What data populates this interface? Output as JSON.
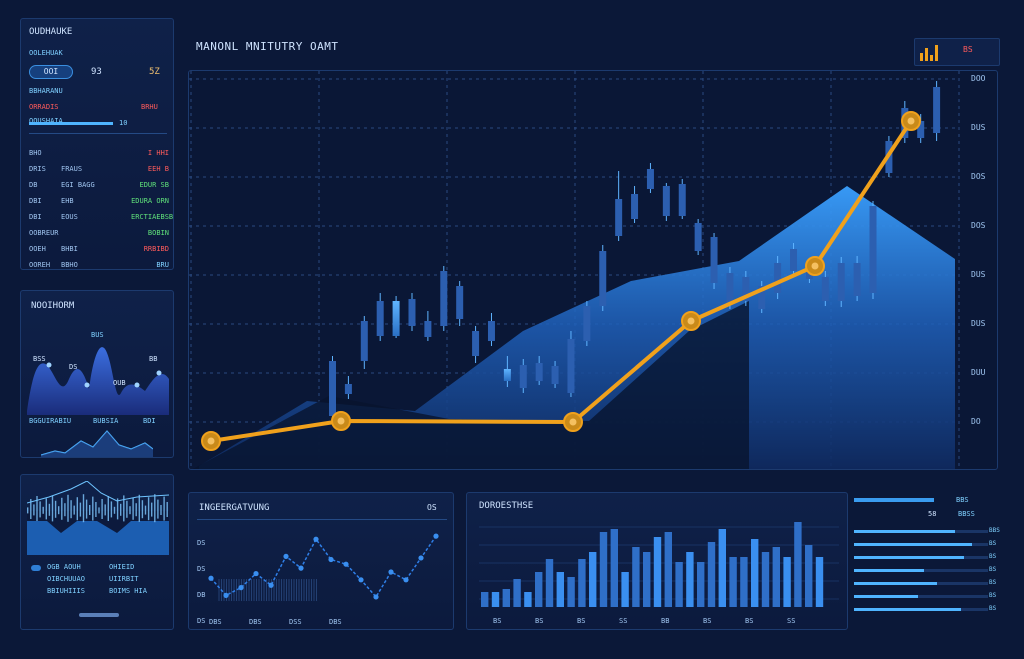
{
  "colors": {
    "background": "#0b1838",
    "panel": "#0f2149",
    "accent_blue": "#2f7fd6",
    "candle": "#4a9fe8",
    "line_orange": "#f0a11c",
    "text_cyan": "#7fd0ff",
    "text_red": "#ff5b5b",
    "text_green": "#5fe07a"
  },
  "left_top_panel": {
    "title": "OUDHAUKE",
    "label1": "OOLEHUAK",
    "pill1": "OOI",
    "pill2": "93",
    "pill3": "5Z",
    "row1_label": "BBHARANU",
    "row1_left": "ORRADIS",
    "row1_right": "BRHU",
    "bar_label": "OOUSHAIA",
    "bar_value": "10",
    "rows": [
      {
        "a": "BHO",
        "b": "",
        "c": "I HHI",
        "color": "red"
      },
      {
        "a": "DRIS",
        "b": "FRAUS",
        "c": "EEH B",
        "color": "red"
      },
      {
        "a": "DB",
        "b": "EGI BAGG",
        "c": "EDUR SB",
        "color": "green"
      },
      {
        "a": "DBI",
        "b": "EHB",
        "c": "EDURA ORN",
        "color": "green"
      },
      {
        "a": "DBI",
        "b": "EOUS",
        "c": "ERCTIAEBSB",
        "color": "green"
      },
      {
        "a": "OOBREUR",
        "b": "",
        "c": "BOBIN",
        "color": "green"
      },
      {
        "a": "OOEH",
        "b": "BHBI",
        "c": "RRBIBD",
        "color": "red"
      },
      {
        "a": "OOREH",
        "b": "BBHO",
        "c": "BRU",
        "color": "cyan"
      }
    ]
  },
  "left_mid_panel": {
    "title": "NOOIHORM",
    "label_top": "BUS",
    "labels": [
      "BSS",
      "DS",
      "OUB",
      "BB"
    ],
    "bottom_labels": [
      "BGGUIRABIU",
      "BUBSIA",
      "BDI"
    ]
  },
  "left_bottom_panel": {
    "rows": [
      {
        "a": "OGB AOUH",
        "b": "OHIEID"
      },
      {
        "a": "OIBCHUUAO",
        "b": "UIIRBIT"
      },
      {
        "a": "BBIUHIIIS",
        "b": "BOIMS HIA"
      }
    ]
  },
  "main_chart": {
    "title": "MANONL MNITUTRY OAMT",
    "ticker_icon": "bar-chart-icon",
    "ticker_value": "BS",
    "y_ticks": [
      "DOO",
      "DUS",
      "DOS",
      "DOS",
      "DUS",
      "DUS",
      "DUU",
      "DO"
    ]
  },
  "chart_data": {
    "type": "line",
    "title": "MANONL MNITUTRY OAMT",
    "candles": [
      {
        "o": 360,
        "c": 415,
        "h": 420,
        "l": 355
      },
      {
        "o": 383,
        "c": 393,
        "h": 398,
        "l": 375
      },
      {
        "o": 320,
        "c": 360,
        "h": 368,
        "l": 315
      },
      {
        "o": 300,
        "c": 335,
        "h": 340,
        "l": 292
      },
      {
        "o": 335,
        "c": 300,
        "h": 337,
        "l": 295
      },
      {
        "o": 298,
        "c": 325,
        "h": 330,
        "l": 292
      },
      {
        "o": 320,
        "c": 336,
        "h": 340,
        "l": 310
      },
      {
        "o": 270,
        "c": 325,
        "h": 330,
        "l": 265
      },
      {
        "o": 285,
        "c": 318,
        "h": 325,
        "l": 280
      },
      {
        "o": 330,
        "c": 355,
        "h": 362,
        "l": 325
      },
      {
        "o": 320,
        "c": 340,
        "h": 345,
        "l": 312
      },
      {
        "o": 380,
        "c": 368,
        "h": 386,
        "l": 355
      },
      {
        "o": 364,
        "c": 387,
        "h": 392,
        "l": 358
      },
      {
        "o": 362,
        "c": 380,
        "h": 384,
        "l": 355
      },
      {
        "o": 365,
        "c": 383,
        "h": 387,
        "l": 360
      },
      {
        "o": 338,
        "c": 392,
        "h": 396,
        "l": 330
      },
      {
        "o": 305,
        "c": 340,
        "h": 345,
        "l": 300
      },
      {
        "o": 250,
        "c": 305,
        "h": 310,
        "l": 244
      },
      {
        "o": 198,
        "c": 235,
        "h": 240,
        "l": 170
      },
      {
        "o": 193,
        "c": 218,
        "h": 222,
        "l": 185
      },
      {
        "o": 168,
        "c": 188,
        "h": 192,
        "l": 162
      },
      {
        "o": 185,
        "c": 215,
        "h": 220,
        "l": 182
      },
      {
        "o": 183,
        "c": 215,
        "h": 218,
        "l": 178
      },
      {
        "o": 222,
        "c": 250,
        "h": 254,
        "l": 218
      },
      {
        "o": 236,
        "c": 282,
        "h": 288,
        "l": 232
      },
      {
        "o": 272,
        "c": 302,
        "h": 308,
        "l": 266
      },
      {
        "o": 276,
        "c": 300,
        "h": 305,
        "l": 270
      },
      {
        "o": 285,
        "c": 308,
        "h": 312,
        "l": 280
      },
      {
        "o": 262,
        "c": 292,
        "h": 298,
        "l": 255
      },
      {
        "o": 248,
        "c": 270,
        "h": 275,
        "l": 242
      },
      {
        "o": 265,
        "c": 278,
        "h": 282,
        "l": 260
      },
      {
        "o": 276,
        "c": 300,
        "h": 305,
        "l": 270
      },
      {
        "o": 262,
        "c": 300,
        "h": 306,
        "l": 256
      },
      {
        "o": 262,
        "c": 295,
        "h": 300,
        "l": 255
      },
      {
        "o": 205,
        "c": 292,
        "h": 298,
        "l": 200
      },
      {
        "o": 140,
        "c": 172,
        "h": 176,
        "l": 135
      },
      {
        "o": 107,
        "c": 137,
        "h": 142,
        "l": 100
      },
      {
        "o": 120,
        "c": 137,
        "h": 142,
        "l": 113
      },
      {
        "o": 86,
        "c": 132,
        "h": 140,
        "l": 80
      }
    ],
    "line": [
      {
        "x": 0,
        "y": 440
      },
      {
        "x": 1,
        "y": 420
      },
      {
        "x": 2,
        "y": 421
      },
      {
        "x": 3,
        "y": 320
      },
      {
        "x": 4,
        "y": 265
      },
      {
        "x": 5,
        "y": 120
      }
    ],
    "area": [
      [
        0,
        465
      ],
      [
        1,
        400
      ],
      [
        2,
        410
      ],
      [
        3,
        330
      ],
      [
        4,
        280
      ],
      [
        5,
        260
      ],
      [
        6,
        185
      ],
      [
        7,
        258
      ]
    ]
  },
  "bottom_line_panel": {
    "title": "INGEERGATVUNG",
    "badge": "OS",
    "y_labels": [
      "DS",
      "DS",
      "DB",
      "DS"
    ],
    "x_labels": [
      "DBS",
      "DBS",
      "DSS",
      "DBS"
    ],
    "values": [
      42,
      20,
      30,
      48,
      33,
      70,
      55,
      92,
      66,
      60,
      40,
      18,
      50,
      40,
      68,
      96
    ]
  },
  "bottom_bar_panel": {
    "title": "DOROESTHSE",
    "values": [
      15,
      15,
      18,
      28,
      15,
      35,
      48,
      35,
      30,
      48,
      55,
      75,
      78,
      35,
      60,
      55,
      70,
      75,
      45,
      55,
      45,
      65,
      78,
      50,
      50,
      68,
      55,
      60,
      50,
      85,
      62,
      50
    ],
    "x_labels": [
      "BS",
      "BS",
      "BS",
      "SS",
      "BB",
      "BS",
      "BS",
      "SS"
    ]
  },
  "right_bars_panel": {
    "top_label": "BBS",
    "top_value": "58",
    "top_right": "BBSS",
    "bars": [
      {
        "fill": 0.75,
        "label": "BBS"
      },
      {
        "fill": 0.88,
        "label": "BS"
      },
      {
        "fill": 0.82,
        "label": "BS"
      },
      {
        "fill": 0.52,
        "label": "BS"
      },
      {
        "fill": 0.62,
        "label": "BS"
      },
      {
        "fill": 0.48,
        "label": "BS"
      },
      {
        "fill": 0.8,
        "label": "BS"
      }
    ]
  }
}
